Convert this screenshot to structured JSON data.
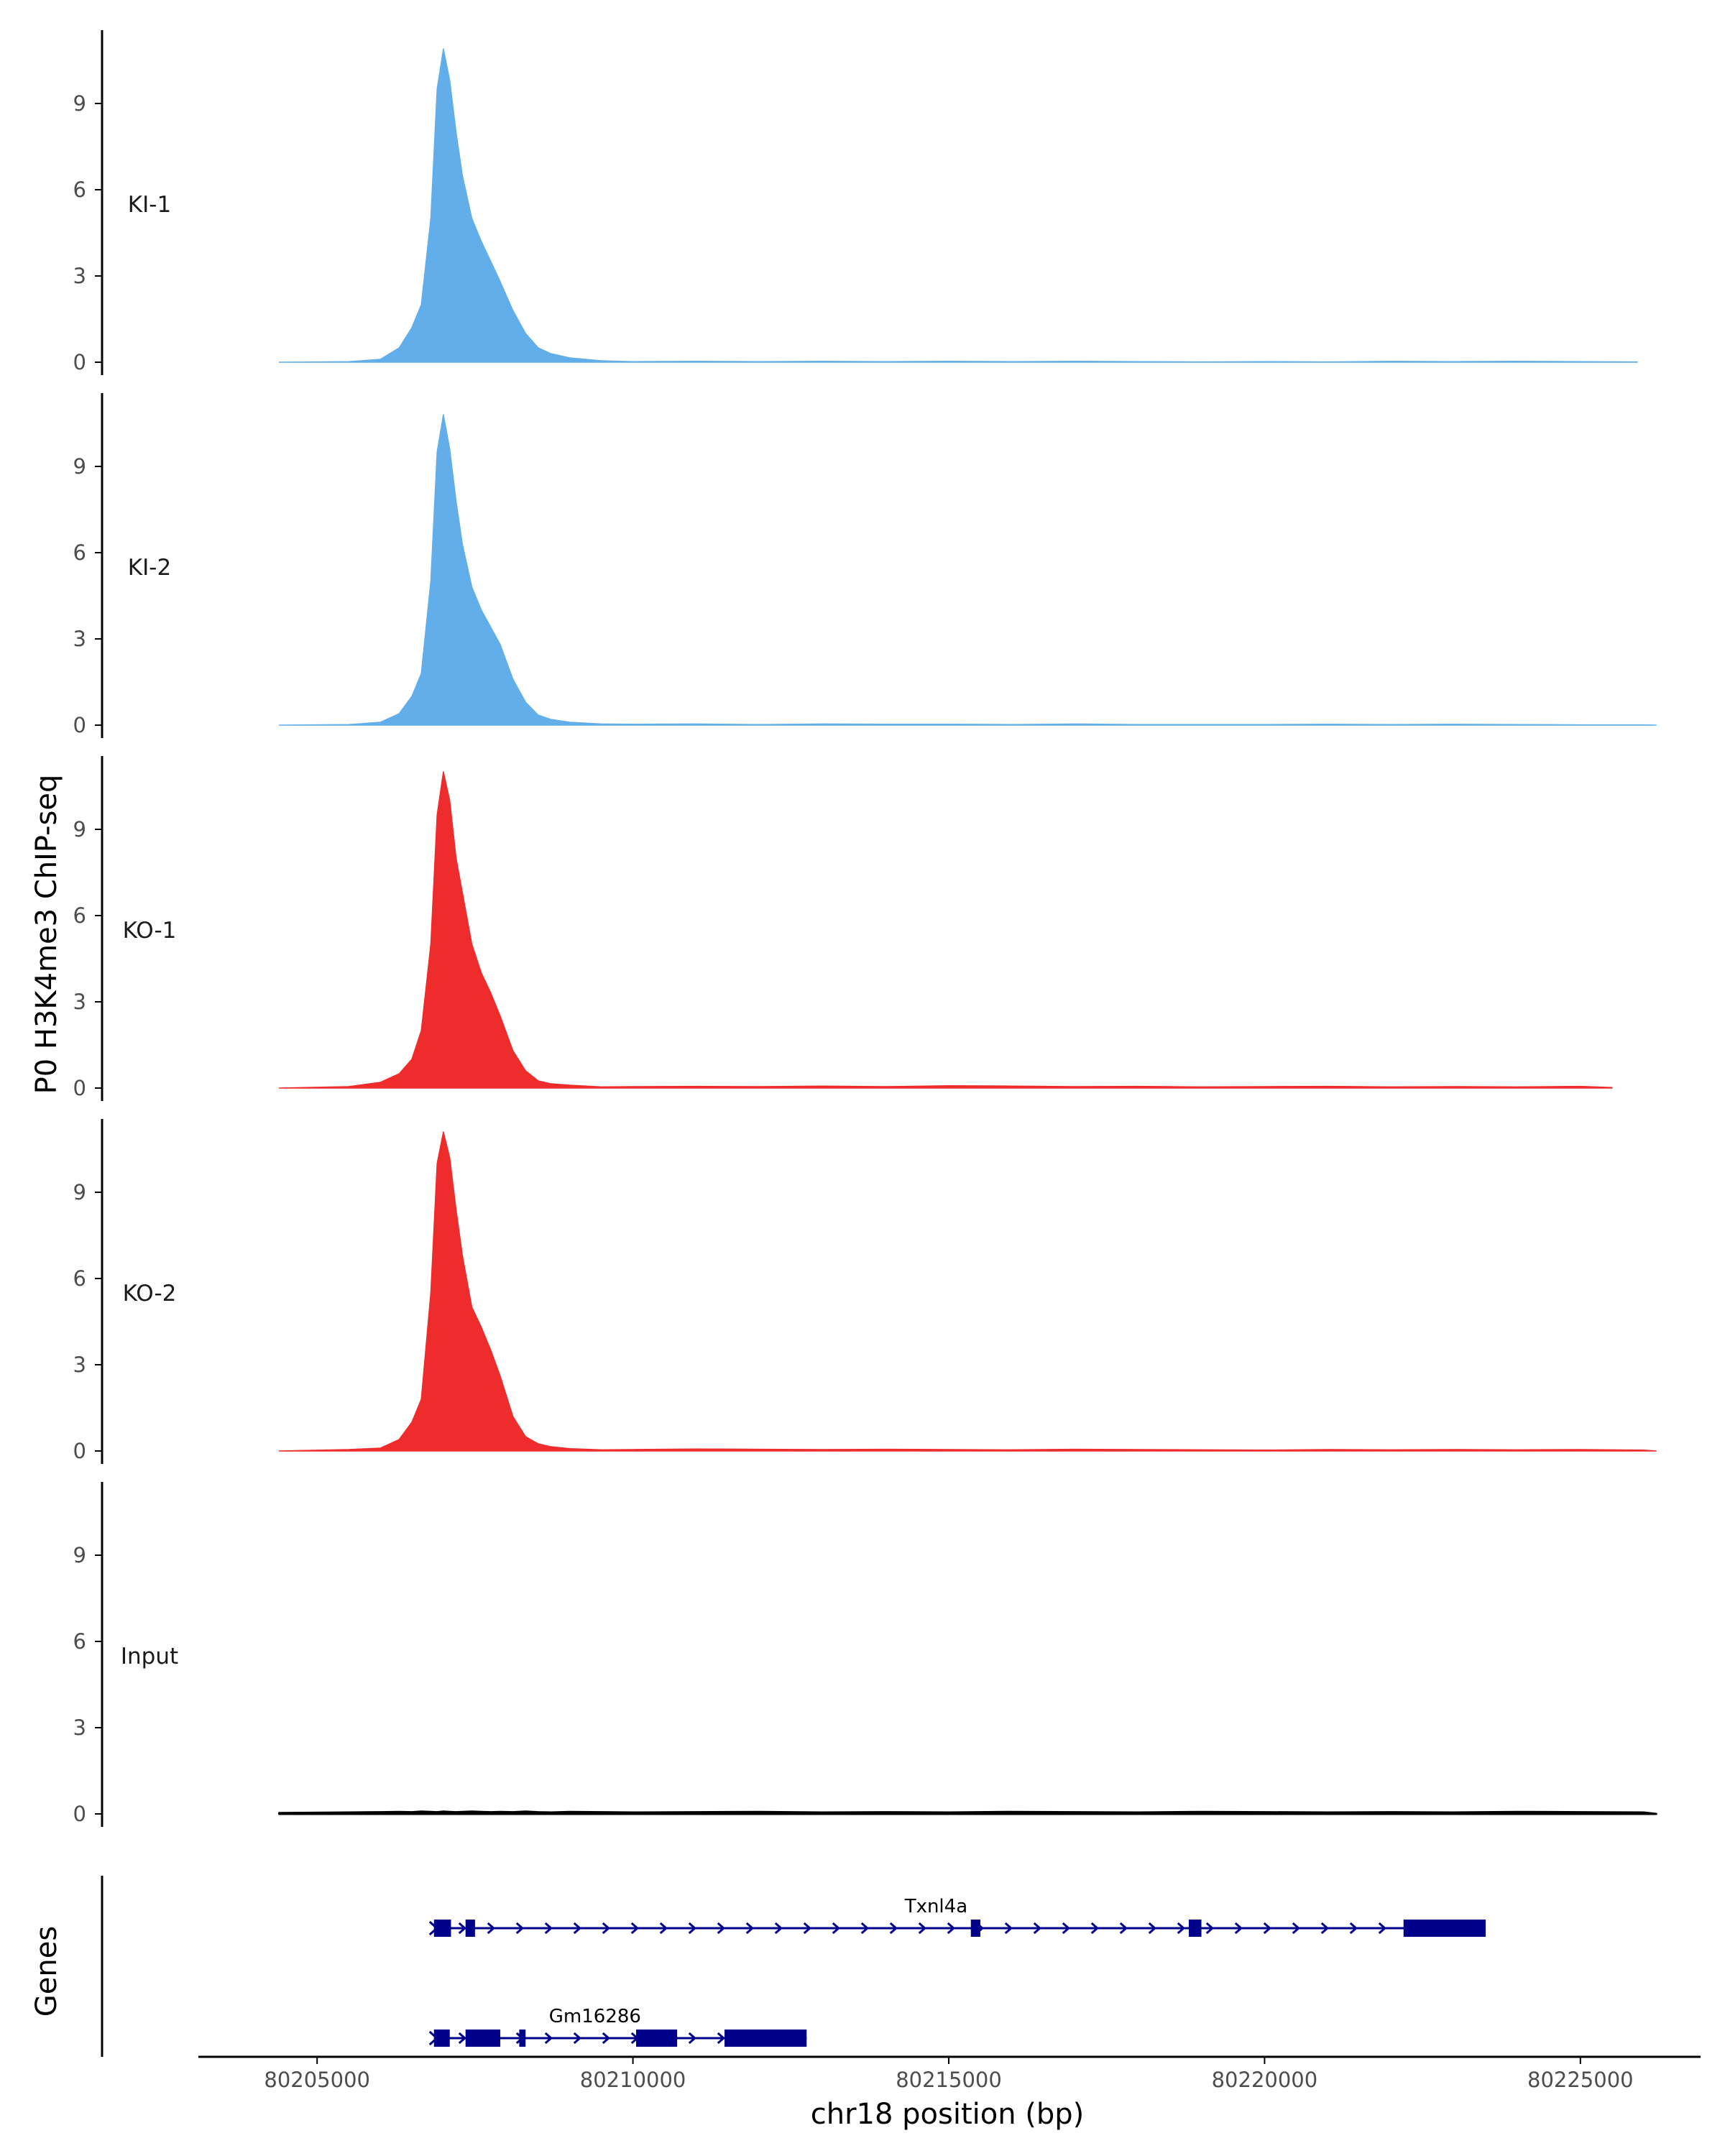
{
  "chart_data": {
    "type": "area",
    "ylabel": "P0 H3K4me3 ChIP-seq",
    "xlabel": "chr18 position (bp)",
    "xlim": [
      80203200,
      80226800
    ],
    "ylim": [
      0,
      12
    ],
    "y_ticks": [
      0,
      3,
      6,
      9
    ],
    "x_ticks": [
      80205000,
      80210000,
      80215000,
      80220000,
      80225000
    ],
    "grid": false,
    "colors": {
      "KI": "#62aeeb",
      "KO": "#ee2c2c",
      "Input": "#000000",
      "gene": "#00008b",
      "axis": "#000000"
    },
    "profile_x": [
      80204400,
      80205500,
      80206000,
      80206300,
      80206500,
      80206650,
      80206800,
      80206900,
      80207000,
      80207100,
      80207200,
      80207300,
      80207450,
      80207600,
      80207750,
      80207900,
      80208100,
      80208300,
      80208500,
      80208700,
      80209000,
      80209500,
      80210000,
      80211000,
      80212000,
      80213000,
      80214000,
      80215000,
      80216000,
      80217000,
      80218000,
      80219000,
      80220000,
      80221000,
      80222000,
      80223000,
      80224000,
      80225000,
      80226000
    ],
    "series": [
      {
        "name": "KI-1",
        "group": "KI",
        "x_end": 80225900,
        "values": [
          0,
          0.02,
          0.1,
          0.5,
          1.2,
          2.0,
          5.0,
          9.5,
          10.9,
          9.8,
          8.0,
          6.5,
          5.0,
          4.2,
          3.5,
          2.8,
          1.8,
          1.0,
          0.5,
          0.3,
          0.15,
          0.05,
          0.02,
          0.03,
          0.02,
          0.03,
          0.02,
          0.03,
          0.02,
          0.03,
          0.02,
          0.01,
          0.02,
          0.01,
          0.03,
          0.02,
          0.03,
          0.02,
          0.01
        ]
      },
      {
        "name": "KI-2",
        "group": "KI",
        "x_end": 80226200,
        "values": [
          0,
          0.02,
          0.1,
          0.4,
          1.0,
          1.8,
          5.0,
          9.5,
          10.8,
          9.6,
          7.8,
          6.3,
          4.8,
          4.0,
          3.4,
          2.8,
          1.6,
          0.8,
          0.35,
          0.2,
          0.1,
          0.04,
          0.03,
          0.04,
          0.02,
          0.04,
          0.03,
          0.03,
          0.02,
          0.04,
          0.02,
          0.02,
          0.02,
          0.03,
          0.02,
          0.03,
          0.02,
          0.01,
          0.01
        ]
      },
      {
        "name": "KO-1",
        "group": "KO",
        "x_end": 80225500,
        "values": [
          0,
          0.05,
          0.2,
          0.5,
          1.0,
          2.0,
          5.0,
          9.5,
          11.0,
          10.0,
          8.0,
          6.8,
          5.0,
          4.0,
          3.3,
          2.5,
          1.3,
          0.6,
          0.25,
          0.15,
          0.1,
          0.04,
          0.05,
          0.06,
          0.05,
          0.07,
          0.05,
          0.08,
          0.07,
          0.05,
          0.06,
          0.04,
          0.05,
          0.06,
          0.04,
          0.05,
          0.04,
          0.06,
          0.02
        ]
      },
      {
        "name": "KO-2",
        "group": "KO",
        "x_end": 80226200,
        "values": [
          0,
          0.05,
          0.1,
          0.4,
          1.0,
          1.8,
          5.5,
          10.0,
          11.1,
          10.2,
          8.4,
          6.8,
          5.0,
          4.3,
          3.5,
          2.6,
          1.2,
          0.5,
          0.25,
          0.15,
          0.08,
          0.04,
          0.05,
          0.07,
          0.06,
          0.05,
          0.06,
          0.05,
          0.04,
          0.06,
          0.05,
          0.04,
          0.03,
          0.05,
          0.04,
          0.05,
          0.04,
          0.05,
          0.03
        ]
      },
      {
        "name": "Input",
        "group": "Input",
        "x_end": 80226200,
        "values": [
          0.03,
          0.05,
          0.06,
          0.07,
          0.06,
          0.08,
          0.07,
          0.06,
          0.08,
          0.07,
          0.06,
          0.07,
          0.08,
          0.07,
          0.06,
          0.07,
          0.06,
          0.08,
          0.06,
          0.05,
          0.07,
          0.06,
          0.05,
          0.06,
          0.07,
          0.05,
          0.06,
          0.05,
          0.07,
          0.06,
          0.05,
          0.07,
          0.06,
          0.05,
          0.06,
          0.05,
          0.07,
          0.06,
          0.05
        ]
      }
    ],
    "genes_label": "Genes",
    "genes": [
      {
        "name": "Txnl4a",
        "start": 80206850,
        "end": 80223500,
        "row": 0,
        "label_x": 80214800,
        "exons": [
          [
            80206850,
            80207120,
            "tall"
          ],
          [
            80207350,
            80207500,
            "tall"
          ],
          [
            80215350,
            80215500,
            "tall"
          ],
          [
            80218800,
            80219000,
            "tall"
          ],
          [
            80222200,
            80223500,
            "tall"
          ]
        ]
      },
      {
        "name": "Gm16286",
        "start": 80206850,
        "end": 80212750,
        "row": 1,
        "label_x": 80209400,
        "exons": [
          [
            80206850,
            80207100,
            "tall"
          ],
          [
            80207350,
            80207900,
            "tall"
          ],
          [
            80208200,
            80208300,
            "tall"
          ],
          [
            80210050,
            80210700,
            "tall"
          ],
          [
            80211450,
            80212750,
            "tall"
          ]
        ]
      }
    ]
  }
}
